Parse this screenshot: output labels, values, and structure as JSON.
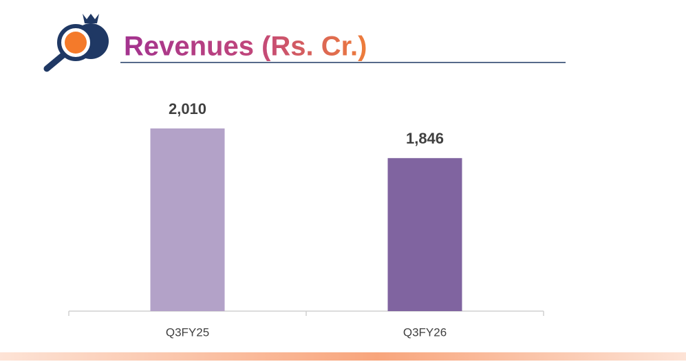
{
  "chart_data": {
    "type": "bar",
    "title": "Revenues (Rs. Cr.)",
    "categories": [
      "Q3FY25",
      "Q3FY26"
    ],
    "values": [
      2010,
      1846
    ],
    "value_labels": [
      "2,010",
      "1,846"
    ],
    "colors": [
      "#b3a2c8",
      "#8064a0"
    ],
    "ylim": [
      1000,
      2200
    ]
  }
}
